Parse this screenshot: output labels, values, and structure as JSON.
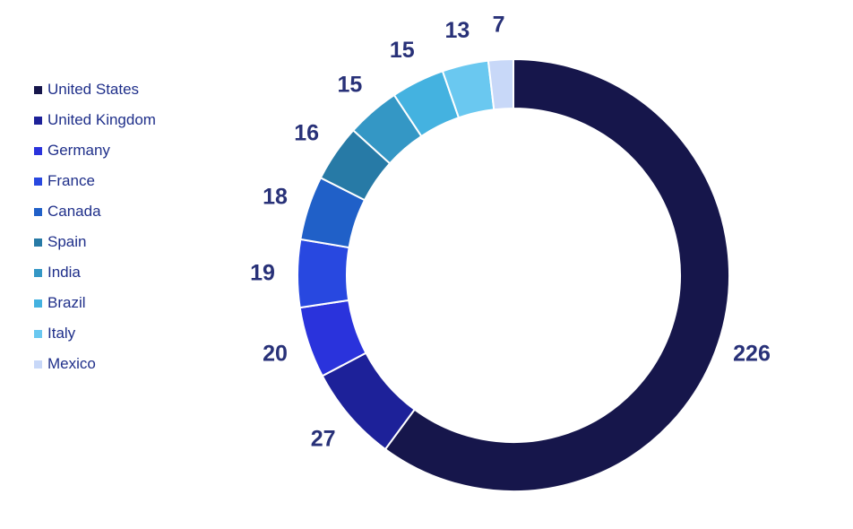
{
  "chart_data": {
    "type": "pie",
    "title": "",
    "legend_position": "left",
    "categories": [
      "United States",
      "United Kingdom",
      "Germany",
      "France",
      "Canada",
      "Spain",
      "India",
      "Brazil",
      "Italy",
      "Mexico"
    ],
    "values": [
      226,
      27,
      20,
      19,
      18,
      16,
      15,
      15,
      13,
      7
    ],
    "colors": [
      "#16164b",
      "#1d2199",
      "#2a33dc",
      "#2848e0",
      "#2060c8",
      "#277aa6",
      "#3497c5",
      "#44b2e0",
      "#6ac8f0",
      "#c8d8f8"
    ]
  }
}
